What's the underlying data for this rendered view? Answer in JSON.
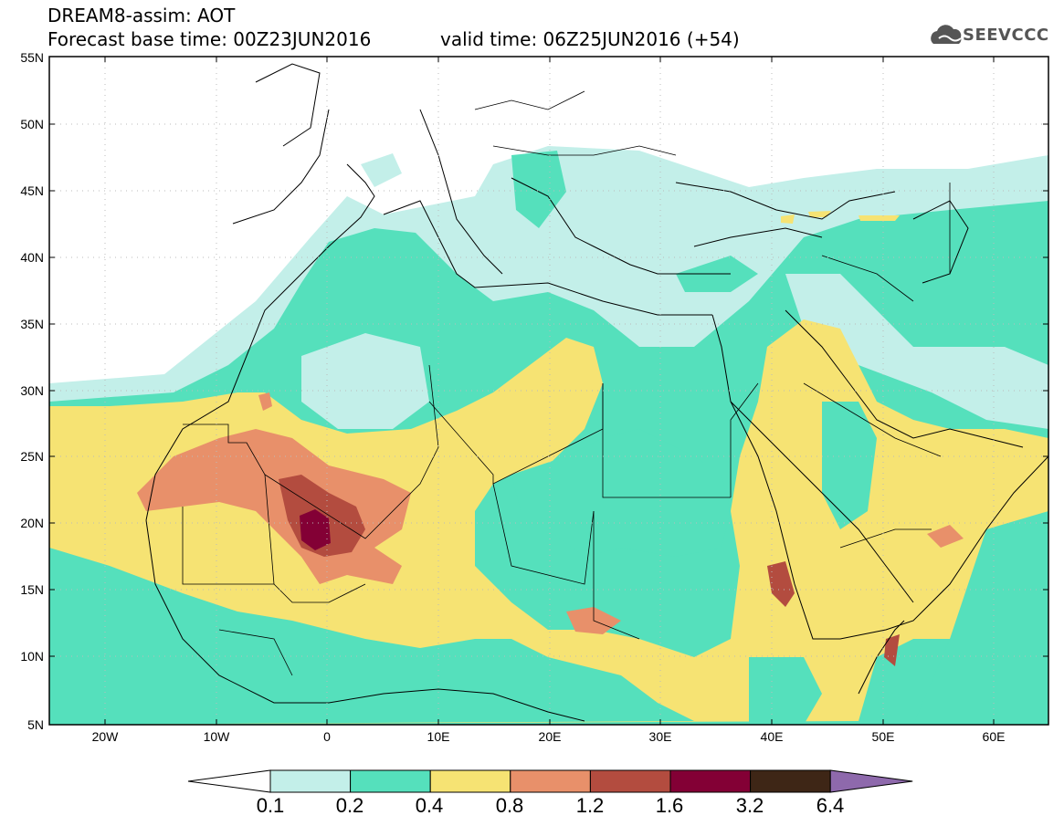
{
  "header": {
    "line1": "DREAM8-assim: AOT",
    "line2": "Forecast base time: 00Z23JUN2016",
    "line3": "valid time: 06Z25JUN2016 (+54)"
  },
  "logo": {
    "text": "SEEVCCC",
    "icon": "cloud-icon"
  },
  "map": {
    "lat_labels": [
      "55N",
      "50N",
      "45N",
      "40N",
      "35N",
      "30N",
      "25N",
      "20N",
      "15N",
      "10N",
      "5N"
    ],
    "lon_labels": [
      "20W",
      "10W",
      "0",
      "10E",
      "20E",
      "30E",
      "40E",
      "50E",
      "60E"
    ]
  },
  "colorbar": {
    "labels": [
      "0.1",
      "0.2",
      "0.4",
      "0.8",
      "1.2",
      "1.6",
      "3.2",
      "6.4"
    ],
    "colors": [
      "#ffffff",
      "#c3efe9",
      "#55e0bc",
      "#f6e373",
      "#e8906a",
      "#b34c3f",
      "#830035",
      "#3e2616",
      "#8e69ac"
    ]
  },
  "palette": {
    "level1": "#c3efe9",
    "level2": "#55e0bc",
    "level3": "#f6e373",
    "level4": "#e8906a",
    "level5": "#b34c3f",
    "level6": "#830035"
  }
}
